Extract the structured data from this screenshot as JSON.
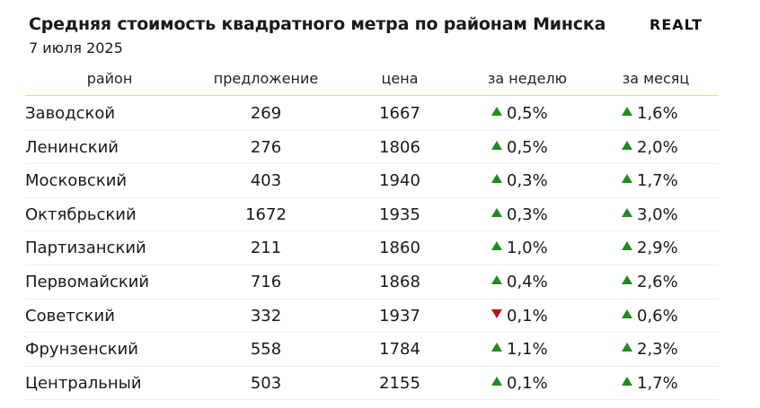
{
  "title": "Средняя стоимость квадратного метра по районам Минска",
  "date": "7 июля 2025",
  "logo": "REALT",
  "colors": {
    "up": "#1e8c1e",
    "down": "#c0121a",
    "header_rule": "#f3dd5a"
  },
  "chart_data": {
    "type": "table",
    "title": "Средняя стоимость квадратного метра по районам Минска",
    "subtitle": "7 июля 2025",
    "columns": [
      "район",
      "предложение",
      "цена",
      "за неделю",
      "за месяц"
    ],
    "rows": [
      {
        "district": "Заводской",
        "offers": "269",
        "price": "1667",
        "week": "0,5%",
        "week_dir": "up",
        "month": "1,6%",
        "month_dir": "up"
      },
      {
        "district": "Ленинский",
        "offers": "276",
        "price": "1806",
        "week": "0,5%",
        "week_dir": "up",
        "month": "2,0%",
        "month_dir": "up"
      },
      {
        "district": "Московский",
        "offers": "403",
        "price": "1940",
        "week": "0,3%",
        "week_dir": "up",
        "month": "1,7%",
        "month_dir": "up"
      },
      {
        "district": "Октябрьский",
        "offers": "1672",
        "price": "1935",
        "week": "0,3%",
        "week_dir": "up",
        "month": "3,0%",
        "month_dir": "up"
      },
      {
        "district": "Партизанский",
        "offers": "211",
        "price": "1860",
        "week": "1,0%",
        "week_dir": "up",
        "month": "2,9%",
        "month_dir": "up"
      },
      {
        "district": "Первомайский",
        "offers": "716",
        "price": "1868",
        "week": "0,4%",
        "week_dir": "up",
        "month": "2,6%",
        "month_dir": "up"
      },
      {
        "district": "Советский",
        "offers": "332",
        "price": "1937",
        "week": "0,1%",
        "week_dir": "down",
        "month": "0,6%",
        "month_dir": "up"
      },
      {
        "district": "Фрунзенский",
        "offers": "558",
        "price": "1784",
        "week": "1,1%",
        "week_dir": "up",
        "month": "2,3%",
        "month_dir": "up"
      },
      {
        "district": "Центральный",
        "offers": "503",
        "price": "2155",
        "week": "0,1%",
        "week_dir": "up",
        "month": "1,7%",
        "month_dir": "up"
      }
    ]
  }
}
